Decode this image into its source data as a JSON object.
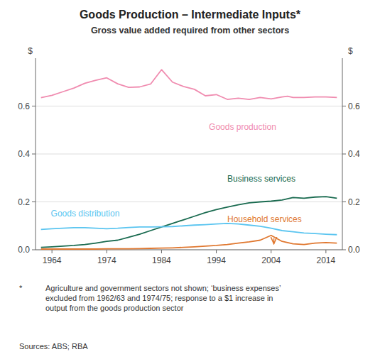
{
  "chart_data": {
    "type": "line",
    "title": "Goods Production – Intermediate Inputs*",
    "subtitle": "Gross value added required from other sectors",
    "y_label": "$",
    "y2_label": "$",
    "footnote_marker": "*",
    "footnote": "Agriculture and government sectors not shown; ‘business expenses’\nexcluded from 1962/63 and 1974/75; response to a $1 increase in\noutput from the goods production sector",
    "sources": "Sources:   ABS; RBA",
    "xlim": [
      1961,
      2017
    ],
    "ylim": [
      0.0,
      0.8
    ],
    "y2lim": [
      0.0,
      0.8
    ],
    "xticks": [
      1964,
      1974,
      1984,
      1994,
      2004,
      2014
    ],
    "yticks": [
      {
        "value": 0.0,
        "label": "0.0"
      },
      {
        "value": 0.2,
        "label": "0.2"
      },
      {
        "value": 0.4,
        "label": "0.4"
      },
      {
        "value": 0.6,
        "label": "0.6"
      }
    ],
    "y2ticks": [
      {
        "value": 0.0,
        "label": "0.0"
      },
      {
        "value": 0.2,
        "label": "0.2"
      },
      {
        "value": 0.4,
        "label": "0.4"
      },
      {
        "value": 0.6,
        "label": "0.6"
      }
    ],
    "grid": true,
    "series": [
      {
        "name": "Goods production",
        "color": "#F08CB0",
        "x": [
          1962,
          1964,
          1966,
          1968,
          1970,
          1972,
          1974,
          1976,
          1978,
          1980,
          1982,
          1984,
          1986,
          1988,
          1990,
          1992,
          1994,
          1996,
          1998,
          2000,
          2002,
          2004,
          2006,
          2007,
          2008,
          2010,
          2012,
          2014,
          2016
        ],
        "values": [
          0.635,
          0.645,
          0.66,
          0.675,
          0.695,
          0.708,
          0.718,
          0.693,
          0.678,
          0.68,
          0.692,
          0.752,
          0.7,
          0.682,
          0.67,
          0.643,
          0.648,
          0.628,
          0.633,
          0.628,
          0.636,
          0.63,
          0.638,
          0.641,
          0.636,
          0.636,
          0.638,
          0.638,
          0.636
        ]
      },
      {
        "name": "Business services",
        "color": "#1A6B50",
        "x": [
          1962,
          1964,
          1966,
          1968,
          1970,
          1972,
          1974,
          1976,
          1978,
          1980,
          1982,
          1984,
          1986,
          1988,
          1990,
          1992,
          1994,
          1996,
          1998,
          2000,
          2002,
          2004,
          2006,
          2008,
          2010,
          2012,
          2014,
          2016
        ],
        "values": [
          0.01,
          0.012,
          0.015,
          0.018,
          0.022,
          0.028,
          0.035,
          0.04,
          0.052,
          0.065,
          0.08,
          0.095,
          0.11,
          0.125,
          0.14,
          0.155,
          0.168,
          0.178,
          0.188,
          0.196,
          0.2,
          0.203,
          0.208,
          0.218,
          0.215,
          0.22,
          0.222,
          0.215
        ]
      },
      {
        "name": "Goods distribution",
        "color": "#5BC5F0",
        "x": [
          1962,
          1964,
          1966,
          1968,
          1970,
          1972,
          1974,
          1976,
          1978,
          1980,
          1982,
          1984,
          1986,
          1988,
          1990,
          1992,
          1994,
          1996,
          1998,
          2000,
          2002,
          2004,
          2006,
          2008,
          2010,
          2012,
          2014,
          2016
        ],
        "values": [
          0.085,
          0.088,
          0.09,
          0.092,
          0.092,
          0.09,
          0.088,
          0.09,
          0.093,
          0.095,
          0.095,
          0.096,
          0.097,
          0.1,
          0.103,
          0.105,
          0.108,
          0.11,
          0.108,
          0.103,
          0.098,
          0.09,
          0.08,
          0.075,
          0.07,
          0.068,
          0.065,
          0.063
        ]
      },
      {
        "name": "Household services",
        "color": "#E07830",
        "x": [
          1962,
          1964,
          1966,
          1968,
          1970,
          1972,
          1974,
          1976,
          1978,
          1980,
          1982,
          1984,
          1986,
          1988,
          1990,
          1992,
          1994,
          1996,
          1998,
          2000,
          2002,
          2004,
          2006,
          2008,
          2010,
          2012,
          2014,
          2016
        ],
        "values": [
          0.003,
          0.003,
          0.003,
          0.003,
          0.003,
          0.003,
          0.004,
          0.004,
          0.004,
          0.005,
          0.006,
          0.007,
          0.008,
          0.01,
          0.012,
          0.015,
          0.018,
          0.022,
          0.028,
          0.033,
          0.04,
          0.06,
          0.035,
          0.025,
          0.022,
          0.028,
          0.03,
          0.028
        ]
      }
    ],
    "arrows": [
      {
        "x": 2004.5,
        "from": 0.048,
        "to": 0.025,
        "color": "#E07830"
      }
    ]
  }
}
